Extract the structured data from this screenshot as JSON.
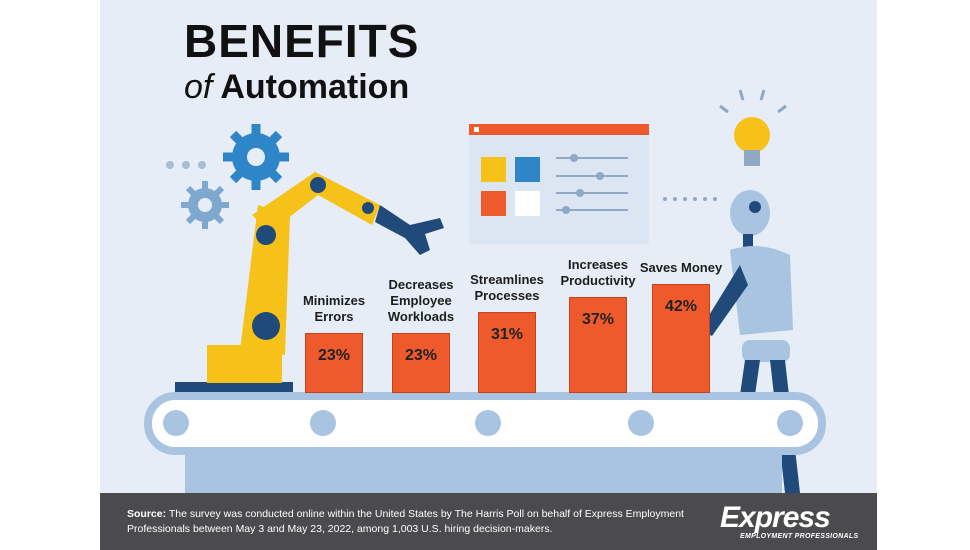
{
  "chart_data": {
    "type": "bar",
    "title": "BENEFITS",
    "subtitle_prefix": "of",
    "subtitle": "Automation",
    "categories": [
      "Minimizes Errors",
      "Decreases Employee Workloads",
      "Streamlines Processes",
      "Increases Productivity",
      "Saves Money"
    ],
    "values": [
      23,
      23,
      31,
      37,
      42
    ],
    "value_labels": [
      "23%",
      "23%",
      "31%",
      "37%",
      "42%"
    ],
    "color": "#ee5a2c"
  },
  "footer": {
    "source_label": "Source:",
    "source_text": "The survey was conducted online within the United States by The Harris Poll on behalf of Express Employment Professionals between May 3 and May 23, 2022, among 1,003 U.S. hiring decision-makers.",
    "logo": "Express",
    "logo_tagline": "EMPLOYMENT PROFESSIONALS"
  }
}
